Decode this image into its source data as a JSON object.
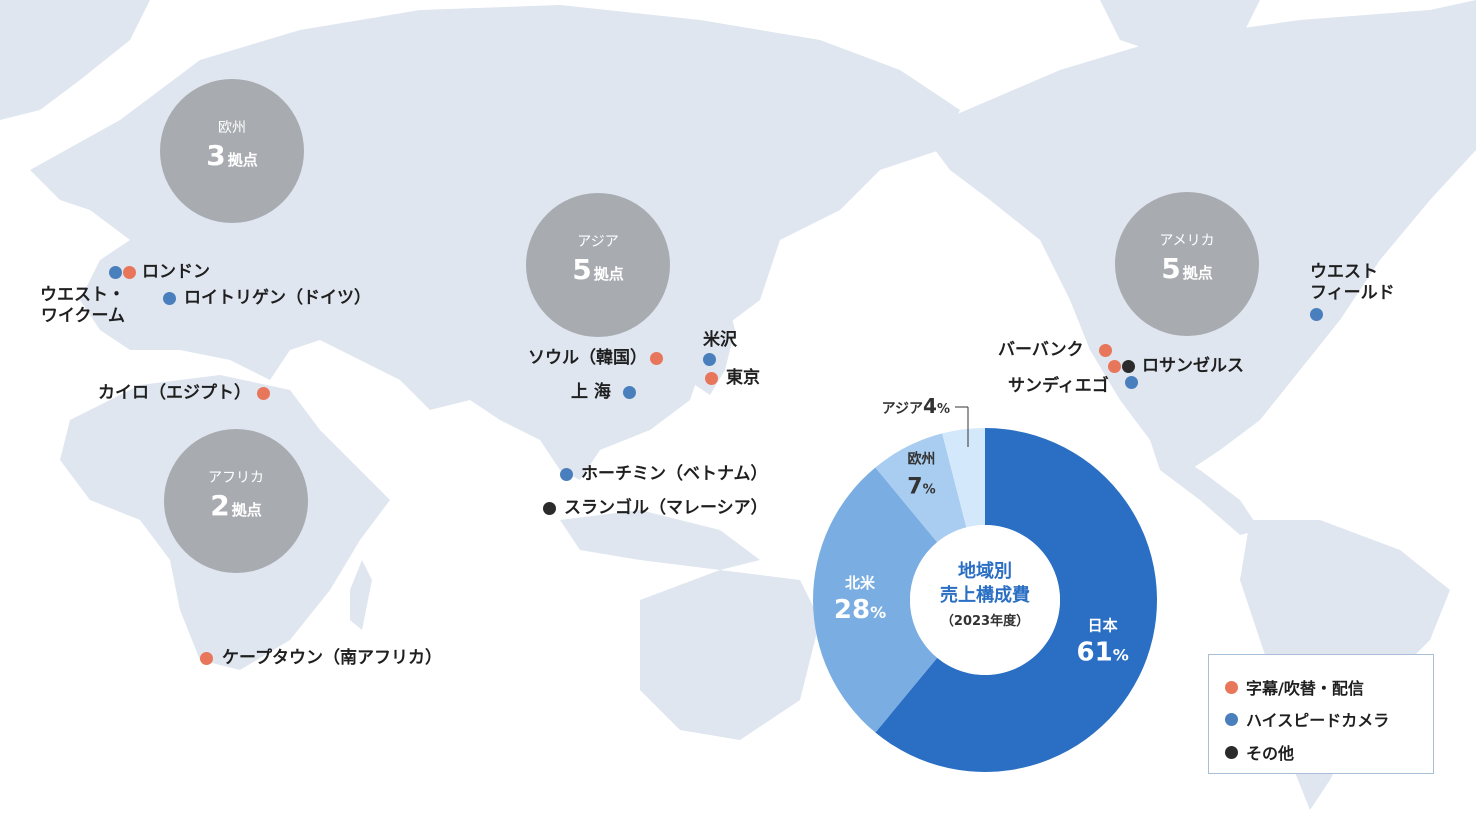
{
  "regions": {
    "europe": {
      "name": "欧州",
      "count": "3",
      "unit": "拠点"
    },
    "asia": {
      "name": "アジア",
      "count": "5",
      "unit": "拠点"
    },
    "americas": {
      "name": "アメリカ",
      "count": "5",
      "unit": "拠点"
    },
    "africa": {
      "name": "アフリカ",
      "count": "2",
      "unit": "拠点"
    }
  },
  "locations": {
    "london": {
      "label": "ロンドン",
      "category": "subtitles"
    },
    "west_wycombe": {
      "label": "ウエスト・\nワイクーム",
      "category": "camera"
    },
    "reutlingen": {
      "label": "ロイトリゲン（ドイツ）",
      "category": "camera"
    },
    "cairo": {
      "label": "カイロ（エジプト）",
      "category": "subtitles"
    },
    "cape_town": {
      "label": "ケープタウン（南アフリカ）",
      "category": "subtitles"
    },
    "seoul": {
      "label": "ソウル（韓国）",
      "category": "subtitles"
    },
    "shanghai": {
      "label": "上 海",
      "category": "camera"
    },
    "yonezawa": {
      "label": "米沢",
      "category": "camera"
    },
    "tokyo": {
      "label": "東京",
      "category": "subtitles"
    },
    "ho_chi_minh": {
      "label": "ホーチミン（ベトナム）",
      "category": "camera"
    },
    "subang": {
      "label": "スランゴル（マレーシア）",
      "category": "other"
    },
    "burbank": {
      "label": "バーバンク",
      "category": "subtitles"
    },
    "los_angeles": {
      "label": "ロサンゼルス",
      "category": "other"
    },
    "san_diego": {
      "label": "サンディエゴ",
      "category": "camera"
    },
    "westfield": {
      "label": "ウエスト\nフィールド",
      "category": "camera"
    }
  },
  "legend": {
    "subtitles": "字幕/吹替・配信",
    "camera": "ハイスピードカメラ",
    "other": "その他"
  },
  "colors": {
    "subtitles": "#e8765a",
    "camera": "#4a7fbd",
    "other": "#2b2b2b",
    "land": "#dfe6f0"
  },
  "chart_data": {
    "type": "pie",
    "title": "地域別\n売上構成費",
    "subtitle": "（2023年度）",
    "unit": "%",
    "slices": [
      {
        "name": "日本",
        "value": 61,
        "color": "#2a6fc4"
      },
      {
        "name": "北米",
        "value": 28,
        "color": "#7aaee3"
      },
      {
        "name": "欧州",
        "value": 7,
        "color": "#a9cdf1"
      },
      {
        "name": "アジア",
        "value": 4,
        "color": "#d4e8fb"
      }
    ]
  }
}
